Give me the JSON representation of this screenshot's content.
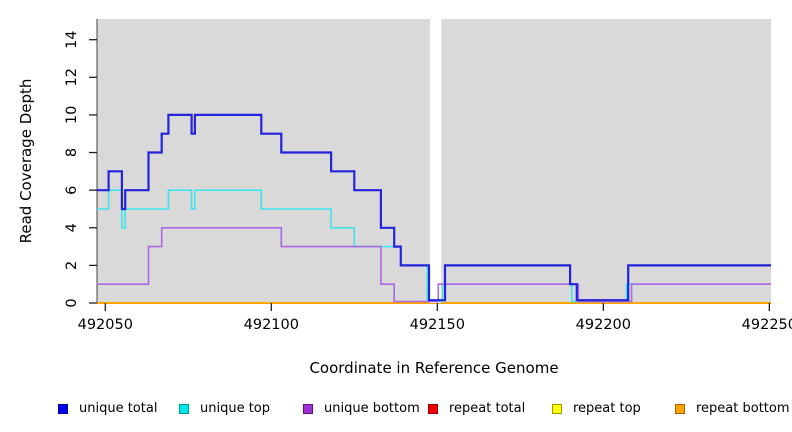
{
  "chart_data": {
    "type": "line",
    "subtype": "step-coverage",
    "title": "",
    "xlabel": "Coordinate in Reference Genome",
    "ylabel": "Read Coverage Depth",
    "x_domain": [
      492047.5,
      492250.5
    ],
    "y_domain": [
      0,
      15.1
    ],
    "x_ticks": [
      {
        "value": 492050,
        "label": "492050"
      },
      {
        "value": 492100,
        "label": "492100"
      },
      {
        "value": 492150,
        "label": "492150"
      },
      {
        "value": 492200,
        "label": "492200"
      },
      {
        "value": 492250,
        "label": "492250"
      }
    ],
    "y_ticks": [
      {
        "value": 0,
        "label": "0"
      },
      {
        "value": 2,
        "label": "2"
      },
      {
        "value": 4,
        "label": "4"
      },
      {
        "value": 6,
        "label": "6"
      },
      {
        "value": 8,
        "label": "8"
      },
      {
        "value": 10,
        "label": "10"
      },
      {
        "value": 12,
        "label": "12"
      },
      {
        "value": 14,
        "label": "14"
      }
    ],
    "grid": false,
    "plot_bg": "#d9d9d9",
    "masked_region": {
      "x0": 492147.8,
      "x1": 492151.2,
      "color": "#ffffff"
    },
    "series": [
      {
        "name": "repeat total",
        "color": "#e00000",
        "width": 1.5,
        "zero_lift": 0,
        "layer": "under",
        "segments": [
          {
            "points": [
              [
                492047.5,
                0
              ]
            ],
            "x_end": 492250.5
          }
        ]
      },
      {
        "name": "repeat top",
        "color": "#ffff00",
        "width": 1.5,
        "zero_lift": 0,
        "layer": "under",
        "segments": [
          {
            "points": [
              [
                492047.5,
                0
              ]
            ],
            "x_end": 492250.5
          }
        ]
      },
      {
        "name": "repeat bottom",
        "color": "#ffa500",
        "width": 2,
        "zero_lift": 0,
        "layer": "under",
        "segments": [
          {
            "points": [
              [
                492047.5,
                0
              ]
            ],
            "x_end": 492250.5
          }
        ]
      },
      {
        "name": "unique top",
        "color": "#40e4ec",
        "width": 1.6,
        "zero_lift": 1.5,
        "layer": "over",
        "segments": [
          {
            "points": [
              [
                492047.5,
                5
              ],
              [
                492051,
                6
              ],
              [
                492055,
                4
              ],
              [
                492056,
                5
              ],
              [
                492069,
                6
              ],
              [
                492076,
                5
              ],
              [
                492077,
                6
              ],
              [
                492097,
                5
              ],
              [
                492118,
                4
              ],
              [
                492125,
                3
              ],
              [
                492139,
                2
              ],
              [
                492147,
                0
              ],
              [
                492151.5,
                1
              ],
              [
                492190.5,
                0
              ],
              [
                492207,
                1
              ]
            ],
            "x_end": 492250.5
          }
        ]
      },
      {
        "name": "unique bottom",
        "color": "#aa68e2",
        "width": 1.6,
        "zero_lift": 1.5,
        "layer": "over",
        "segments": [
          {
            "points": [
              [
                492047.5,
                1
              ],
              [
                492063,
                3
              ],
              [
                492067,
                4
              ],
              [
                492103,
                3
              ],
              [
                492133,
                1
              ],
              [
                492137,
                0
              ],
              [
                492150.3,
                1
              ],
              [
                492192.5,
                0
              ],
              [
                492208.5,
                1
              ]
            ],
            "x_end": 492250.5
          }
        ]
      },
      {
        "name": "unique total",
        "color": "#2323dc",
        "width": 2.2,
        "zero_lift": 2.8,
        "layer": "over",
        "segments": [
          {
            "points": [
              [
                492047.5,
                6
              ],
              [
                492051,
                7
              ],
              [
                492055,
                5
              ],
              [
                492056,
                6
              ],
              [
                492063,
                8
              ],
              [
                492067,
                9
              ],
              [
                492069,
                10
              ],
              [
                492076,
                9
              ],
              [
                492077,
                10
              ],
              [
                492097,
                9
              ],
              [
                492103,
                8
              ],
              [
                492118,
                7
              ],
              [
                492125,
                6
              ],
              [
                492133,
                4
              ],
              [
                492137,
                3
              ],
              [
                492139,
                2
              ],
              [
                492147.5,
                0
              ],
              [
                492152.3,
                2
              ],
              [
                492190,
                1
              ],
              [
                492192,
                0
              ],
              [
                492207.5,
                2
              ]
            ],
            "x_end": 492250.5
          }
        ]
      }
    ],
    "legend": [
      {
        "label": "unique total",
        "color": "#0000ee",
        "border": "#00009c"
      },
      {
        "label": "unique top",
        "color": "#00e6ee",
        "border": "#009aa4"
      },
      {
        "label": "unique bottom",
        "color": "#9c2fd6",
        "border": "#5e1287"
      },
      {
        "label": "repeat total",
        "color": "#ee0000",
        "border": "#930000"
      },
      {
        "label": "repeat top",
        "color": "#ffff00",
        "border": "#999900"
      },
      {
        "label": "repeat bottom",
        "color": "#ffa500",
        "border": "#a36a00"
      }
    ],
    "legend_position": "bottom"
  }
}
